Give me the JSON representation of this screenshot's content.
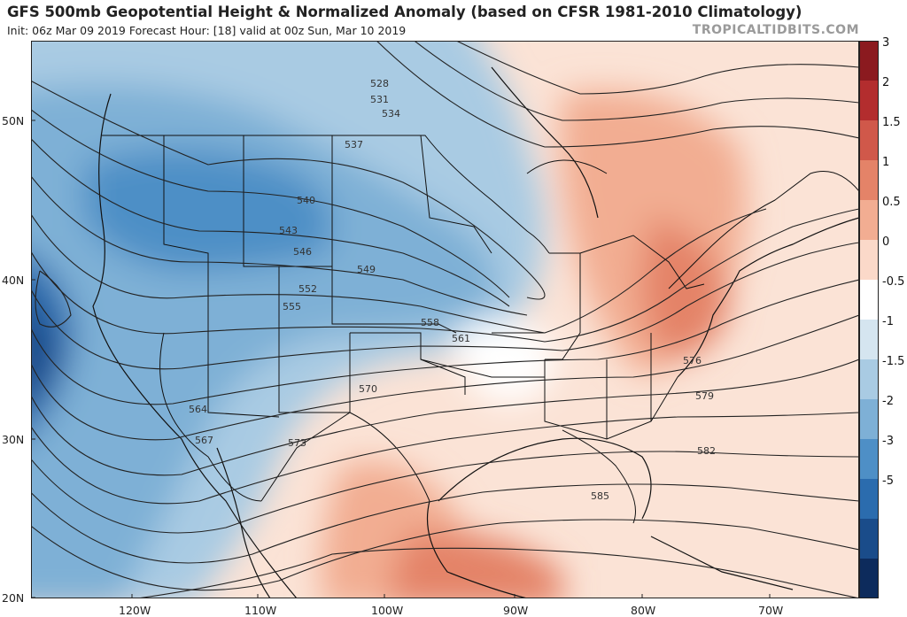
{
  "header": {
    "title": "GFS 500mb Geopotential Height & Normalized Anomaly (based on CFSR 1981-2010 Climatology)",
    "subtitle": "Init: 06z Mar 09 2019   Forecast Hour: [18]   valid at 00z Sun, Mar 10 2019",
    "brand": "TROPICALTIDBITS.COM"
  },
  "axes": {
    "lat_labels": [
      "50N",
      "40N",
      "30N",
      "20N"
    ],
    "lon_labels": [
      "120W",
      "110W",
      "100W",
      "90W",
      "80W",
      "70W"
    ]
  },
  "colorbar": {
    "ticks": [
      "3",
      "2",
      "1.5",
      "1",
      "0.5",
      "0",
      "-0.5",
      "-1",
      "-1.5",
      "-2",
      "-3",
      "-5"
    ],
    "colors": [
      "#8b1a1f",
      "#b32d2e",
      "#d0584a",
      "#e48368",
      "#f2ad92",
      "#fbd9c9",
      "#ffffff",
      "#d5e5f0",
      "#a9cbe3",
      "#7eb0d6",
      "#4e8fc6",
      "#2b6cae",
      "#1a4c8a",
      "#0d2b5c"
    ]
  },
  "contours": {
    "labels": [
      "528",
      "531",
      "534",
      "537",
      "540",
      "543",
      "546",
      "549",
      "552",
      "555",
      "558",
      "561",
      "564",
      "567",
      "570",
      "573",
      "576",
      "579",
      "582",
      "585"
    ]
  }
}
